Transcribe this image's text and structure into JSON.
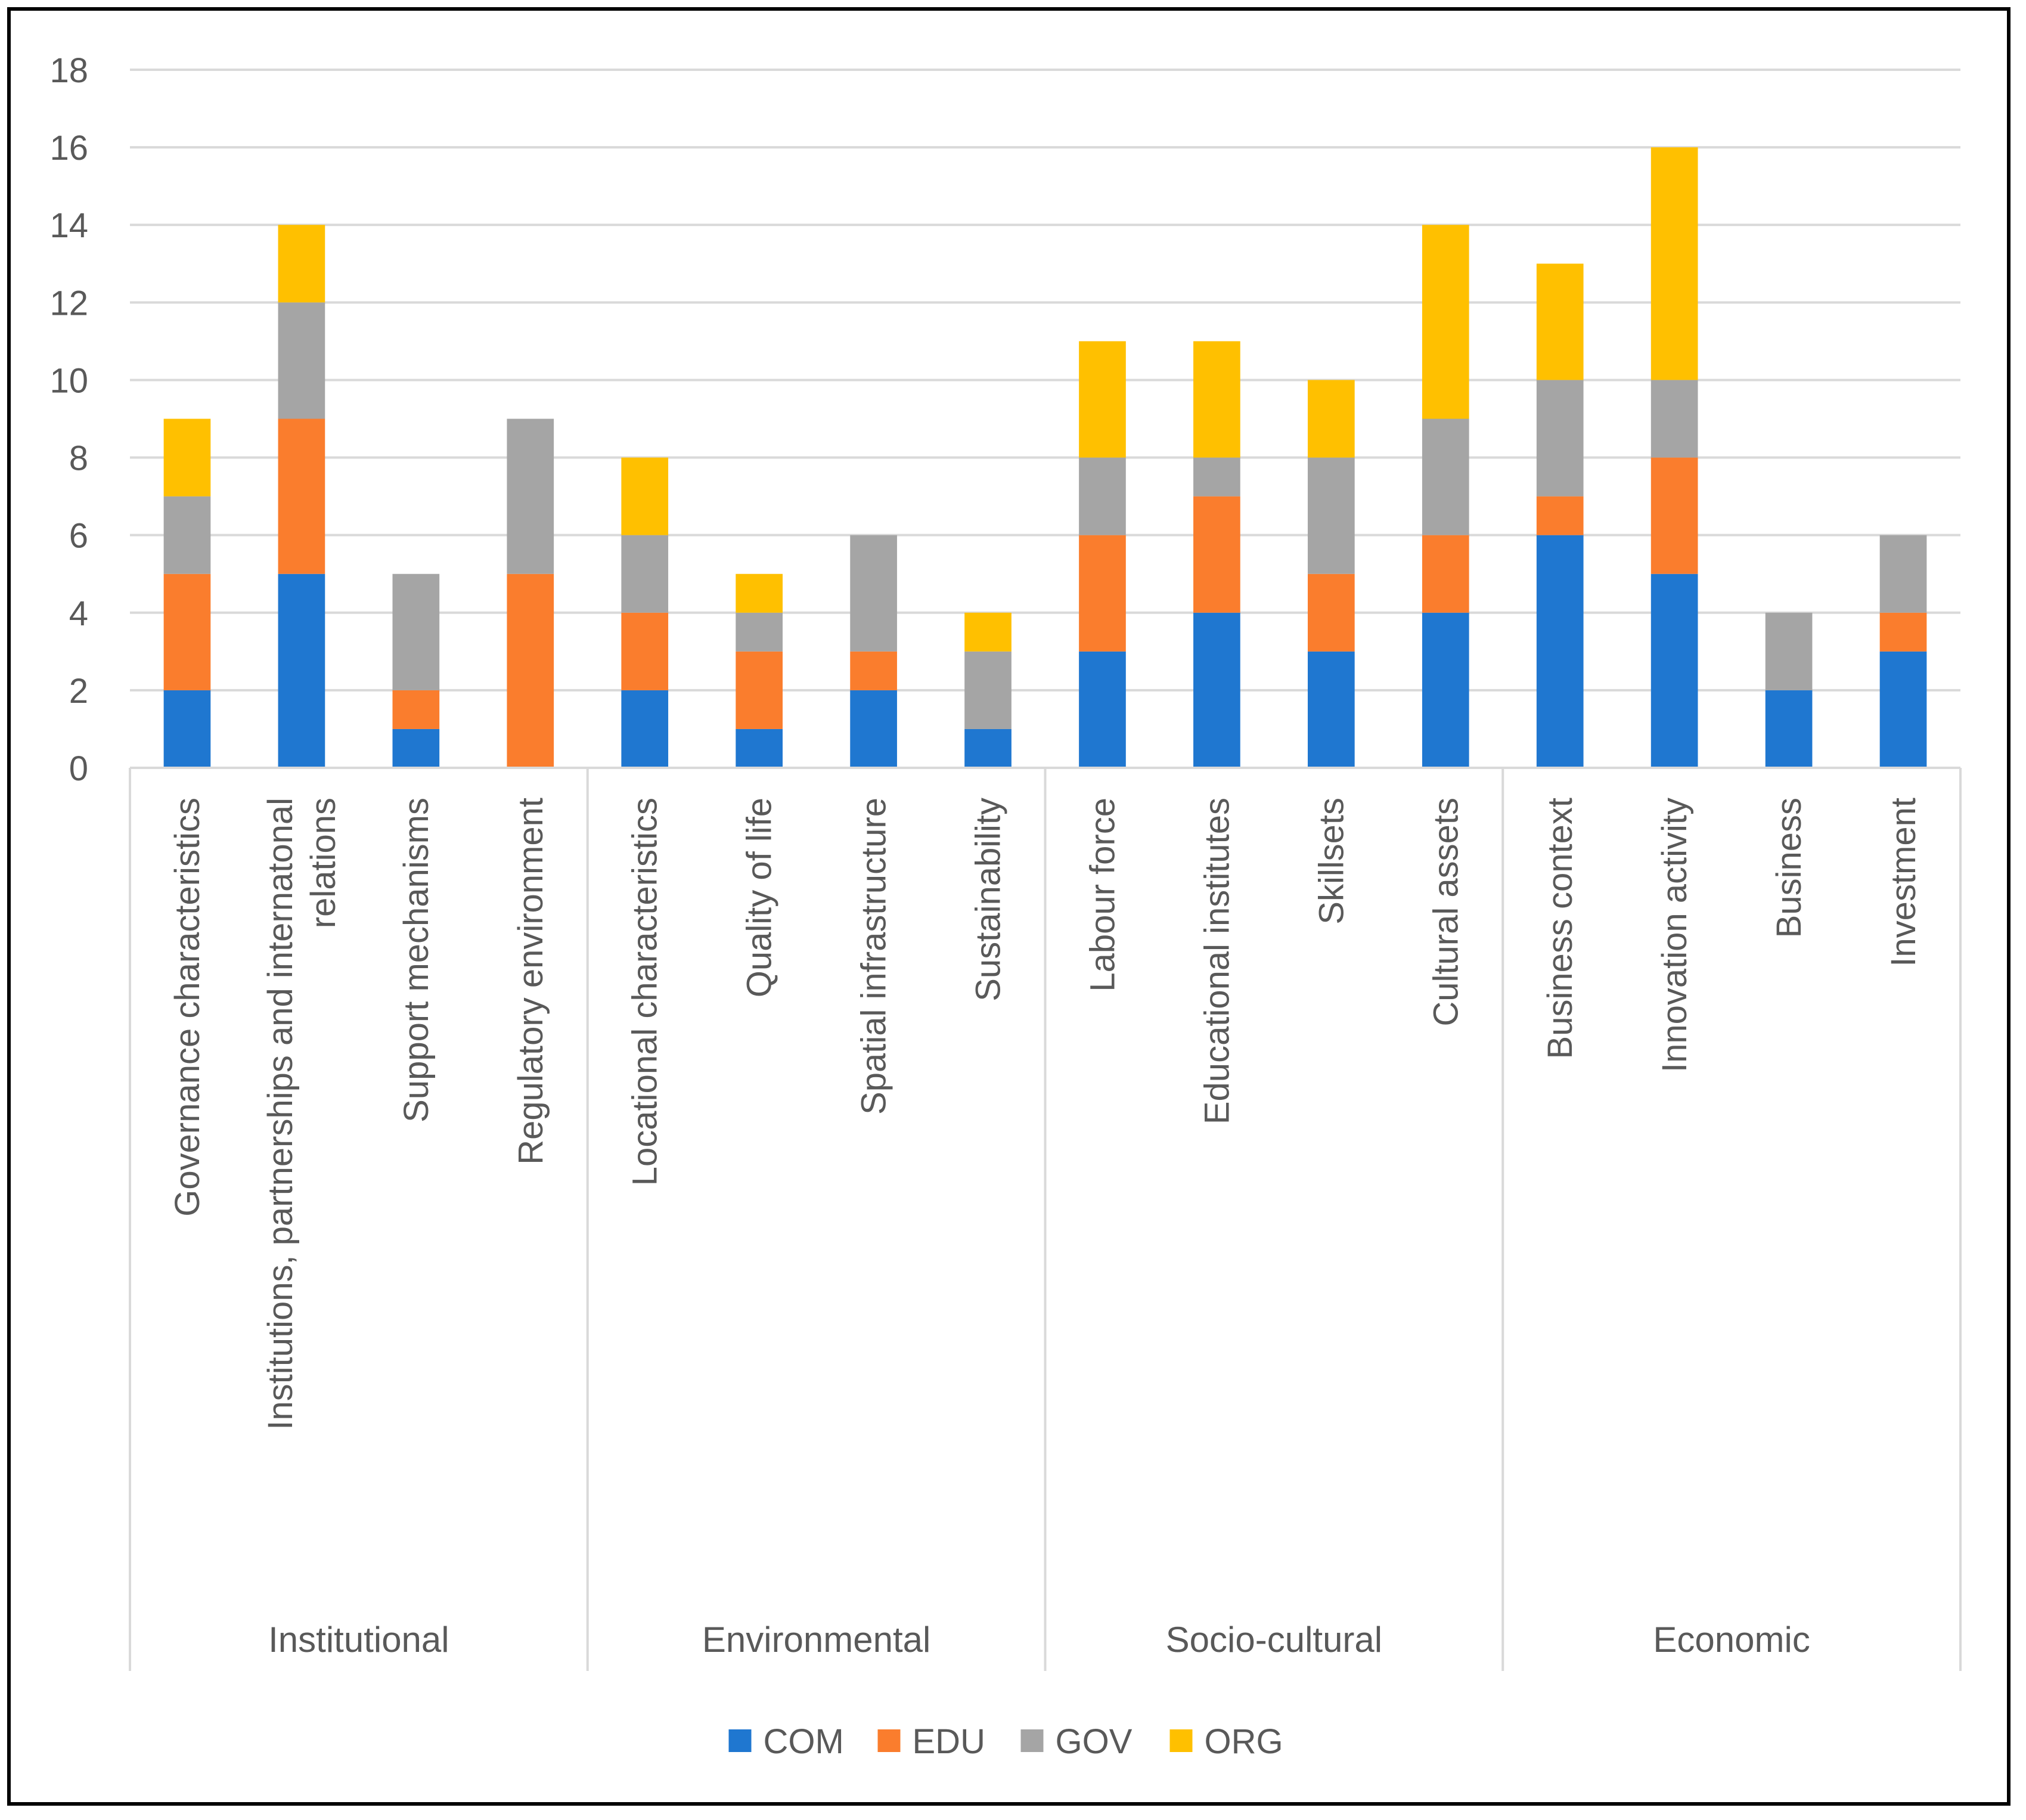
{
  "chart_data": {
    "type": "bar",
    "stacked": true,
    "title": "",
    "xlabel": "",
    "ylabel": "",
    "ylim": [
      0,
      18
    ],
    "ytick_step": 2,
    "yticks": [
      "0",
      "2",
      "4",
      "6",
      "8",
      "10",
      "12",
      "14",
      "16",
      "18"
    ],
    "grid": true,
    "legend_position": "bottom",
    "groups": [
      {
        "label": "Institutional",
        "categories": [
          "Governance characteristics",
          "Institutions, partnerships and internatonal relations",
          "Support mechanisms",
          "Regulatory environment"
        ]
      },
      {
        "label": "Environmental",
        "categories": [
          "Locational characteristics",
          "Quality of life",
          "Spatial infrastructure",
          "Sustainability"
        ]
      },
      {
        "label": "Socio-cultural",
        "categories": [
          "Labour force",
          "Educational institutes",
          "Skillsets",
          "Cultural assets"
        ]
      },
      {
        "label": "Economic",
        "categories": [
          "Business context",
          "Innovation activity",
          "Business",
          "Investment"
        ]
      }
    ],
    "categories": [
      "Governance characteristics",
      "Institutions, partnerships and internatonal relations",
      "Support mechanisms",
      "Regulatory environment",
      "Locational characteristics",
      "Quality of life",
      "Spatial infrastructure",
      "Sustainability",
      "Labour force",
      "Educational institutes",
      "Skillsets",
      "Cultural assets",
      "Business context",
      "Innovation activity",
      "Business",
      "Investment"
    ],
    "category_lines": [
      [
        "Governance characteristics"
      ],
      [
        "Institutions, partnerships and internatonal",
        "relations"
      ],
      [
        "Support mechanisms"
      ],
      [
        "Regulatory environment"
      ],
      [
        "Locational characteristics"
      ],
      [
        "Quality of life"
      ],
      [
        "Spatial infrastructure"
      ],
      [
        "Sustainability"
      ],
      [
        "Labour force"
      ],
      [
        "Educational institutes"
      ],
      [
        "Skillsets"
      ],
      [
        "Cultural assets"
      ],
      [
        "Business context"
      ],
      [
        "Innovation activity"
      ],
      [
        "Business"
      ],
      [
        "Investment"
      ]
    ],
    "series": [
      {
        "name": "COM",
        "color": "#1F77D0",
        "values": [
          2,
          5,
          1,
          0,
          2,
          1,
          2,
          1,
          3,
          4,
          3,
          4,
          6,
          5,
          2,
          3
        ]
      },
      {
        "name": "EDU",
        "color": "#FA7D2D",
        "values": [
          3,
          4,
          1,
          5,
          2,
          2,
          1,
          0,
          3,
          3,
          2,
          2,
          1,
          3,
          0,
          1
        ]
      },
      {
        "name": "GOV",
        "color": "#A5A5A5",
        "values": [
          2,
          3,
          3,
          4,
          2,
          1,
          3,
          2,
          2,
          1,
          3,
          3,
          3,
          2,
          2,
          2
        ]
      },
      {
        "name": "ORG",
        "color": "#FFC000",
        "values": [
          2,
          2,
          0,
          0,
          2,
          1,
          0,
          1,
          3,
          3,
          2,
          5,
          3,
          6,
          0,
          0
        ]
      }
    ]
  }
}
